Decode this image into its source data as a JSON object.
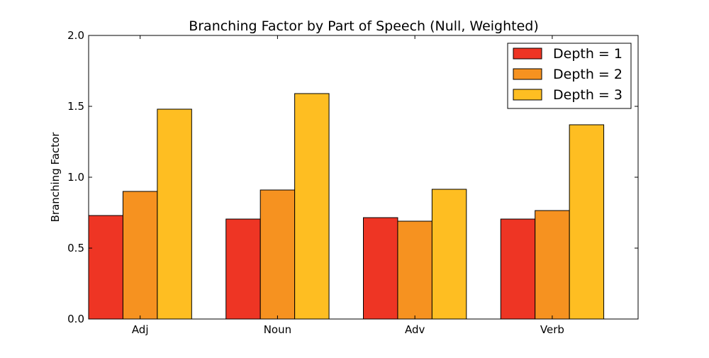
{
  "chart_data": {
    "type": "bar",
    "title": "Branching Factor by Part of Speech (Null, Weighted)",
    "xlabel": "",
    "ylabel": "Branching Factor",
    "categories": [
      "Adj",
      "Noun",
      "Adv",
      "Verb"
    ],
    "series": [
      {
        "name": "Depth = 1",
        "color": "#ee3524",
        "values": [
          0.73,
          0.705,
          0.715,
          0.705
        ]
      },
      {
        "name": "Depth = 2",
        "color": "#f69220",
        "values": [
          0.9,
          0.91,
          0.69,
          0.765
        ]
      },
      {
        "name": "Depth = 3",
        "color": "#febe22",
        "values": [
          1.48,
          1.59,
          0.915,
          1.37
        ]
      }
    ],
    "ylim": [
      0,
      2.0
    ],
    "yticks": [
      "0.0",
      "0.5",
      "1.0",
      "1.5",
      "2.0"
    ],
    "ytick_values": [
      0,
      0.5,
      1.0,
      1.5,
      2.0
    ],
    "grid": false,
    "legend_position": "top-right"
  }
}
